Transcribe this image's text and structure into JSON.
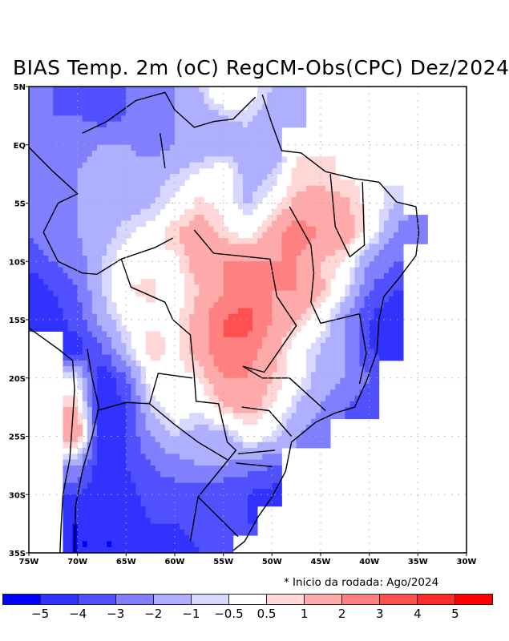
{
  "title": "BIAS Temp. 2m (oC) RegCM-Obs(CPC) Dez/2024",
  "note": "* Inicio da rodada: Ago/2024",
  "chart_data": {
    "type": "heatmap",
    "title": "BIAS Temp. 2m (oC) RegCM-Obs(CPC) Dez/2024",
    "subtitle": "* Inicio da rodada: Ago/2024",
    "xlabel": "",
    "ylabel": "",
    "xlim": [
      -75,
      -30
    ],
    "ylim": [
      -35,
      5
    ],
    "grid": true,
    "x_tick_labels": [
      "75W",
      "70W",
      "65W",
      "60W",
      "55W",
      "50W",
      "45W",
      "40W",
      "35W",
      "30W"
    ],
    "x_ticks": [
      -75,
      -70,
      -65,
      -60,
      -55,
      -50,
      -45,
      -40,
      -35,
      -30
    ],
    "y_tick_labels": [
      "5N",
      "EQ",
      "5S",
      "10S",
      "15S",
      "20S",
      "25S",
      "30S",
      "35S"
    ],
    "y_ticks": [
      5,
      0,
      -5,
      -10,
      -15,
      -20,
      -25,
      -30,
      -35
    ],
    "colorbar": {
      "levels": [
        -5,
        -4,
        -3,
        -2,
        -1,
        -0.5,
        0.5,
        1,
        2,
        3,
        4,
        5
      ],
      "level_labels": [
        "-5",
        "-4",
        "-3",
        "-2",
        "-1",
        "-0.5",
        "0.5",
        "1",
        "2",
        "3",
        "4",
        "5"
      ],
      "colors": [
        "#0000ff",
        "#3232ff",
        "#5050ff",
        "#8080ff",
        "#afafff",
        "#d7d7ff",
        "#ffffff",
        "#ffd7d7",
        "#ffaaaa",
        "#ff8080",
        "#ff5050",
        "#ff2a2a",
        "#ff0000"
      ]
    },
    "grid_lon": [
      -75,
      -72.5,
      -70,
      -67.5,
      -65,
      -62.5,
      -60,
      -57.5,
      -55,
      -52.5,
      -50,
      -47.5,
      -45,
      -42.5,
      -40,
      -37.5,
      -35,
      -32.5,
      -30
    ],
    "grid_lat": [
      5,
      2.5,
      0,
      -2.5,
      -5,
      -7.5,
      -10,
      -12.5,
      -15,
      -17.5,
      -20,
      -22.5,
      -25,
      -27.5,
      -30,
      -32.5,
      -35
    ],
    "values": [
      [
        -2.5,
        -3,
        -3.5,
        -4,
        -3,
        -3,
        -2,
        -1,
        0.7,
        0,
        -1,
        -1.5,
        null,
        null,
        null,
        null,
        null,
        null,
        null
      ],
      [
        -3,
        -3,
        -3,
        -3.5,
        -3,
        -2.5,
        -2,
        -1.5,
        -1,
        -0.7,
        -1.5,
        -2,
        null,
        null,
        null,
        null,
        null,
        null,
        null
      ],
      [
        -2.5,
        -3,
        -2.5,
        -2,
        -2,
        -2.5,
        -2,
        -2,
        -1.5,
        -1.5,
        -2,
        null,
        null,
        null,
        null,
        null,
        null,
        null,
        null
      ],
      [
        -3,
        -3,
        -2,
        -1.5,
        -1.5,
        -1.5,
        -1,
        -0.3,
        0.3,
        -1.5,
        -1,
        0.7,
        0.7,
        0.3,
        null,
        null,
        null,
        null,
        null
      ],
      [
        -3,
        -3,
        -2,
        -1.5,
        -1.5,
        -1.2,
        -0.3,
        0.7,
        0.2,
        -1.2,
        0,
        1.2,
        1.5,
        1.2,
        0.2,
        -1,
        null,
        null,
        null
      ],
      [
        -3,
        -2.5,
        -2,
        -1.5,
        -0.7,
        0,
        1,
        1.5,
        0.7,
        0,
        1.5,
        2.5,
        2,
        1.5,
        0.3,
        -2,
        -3,
        null,
        null
      ],
      [
        -3.5,
        -3,
        -2.5,
        -1,
        0,
        0.3,
        0.3,
        1.5,
        2,
        2,
        2,
        2,
        1,
        0.5,
        -2,
        -3,
        null,
        null,
        null
      ],
      [
        -5,
        -4,
        -3,
        -1,
        0.5,
        0.7,
        0,
        1,
        2,
        2.5,
        2,
        2,
        1.2,
        -0.5,
        -3,
        -4,
        null,
        null,
        null
      ],
      [
        -5,
        -4.5,
        -3.5,
        -1.5,
        -0.3,
        0.3,
        0.2,
        1.5,
        3,
        3.5,
        2,
        1,
        0,
        -2,
        -4,
        -5,
        null,
        null,
        null
      ],
      [
        null,
        null,
        -4.5,
        -3,
        -1,
        1,
        0.3,
        1.5,
        3,
        2.5,
        1.5,
        0,
        -1,
        -2,
        -4,
        -5,
        null,
        null,
        null
      ],
      [
        null,
        null,
        -0.5,
        -5,
        -3,
        0,
        0.2,
        0.5,
        2,
        2,
        1,
        0,
        -1.5,
        -2,
        -3,
        null,
        null,
        null,
        null
      ],
      [
        null,
        null,
        1,
        -5,
        -4,
        -1,
        0.2,
        -0.3,
        1,
        1.5,
        0.5,
        -1,
        -2,
        -3,
        -3.5,
        null,
        null,
        null,
        null
      ],
      [
        null,
        null,
        2,
        -5,
        -4,
        -2,
        -1,
        -1.5,
        -1.5,
        0,
        -0.5,
        -2,
        -2.5,
        null,
        null,
        null,
        null,
        null,
        null
      ],
      [
        null,
        null,
        -2,
        -5,
        -4,
        -3,
        -2.5,
        -2,
        -2,
        -2.5,
        -3,
        null,
        null,
        null,
        null,
        null,
        null,
        null,
        null
      ],
      [
        null,
        null,
        -4,
        -5,
        -4.5,
        -3.5,
        -3.5,
        -3.5,
        -4,
        -4,
        -4.5,
        null,
        null,
        null,
        null,
        null,
        null,
        null,
        null
      ],
      [
        null,
        null,
        -5,
        -5,
        -5,
        -4,
        -4,
        -3.5,
        -3.5,
        -4,
        null,
        null,
        null,
        null,
        null,
        null,
        null,
        null,
        null
      ],
      [
        null,
        null,
        -5,
        -5,
        -5,
        -5,
        -5,
        -4,
        -4,
        null,
        null,
        null,
        null,
        null,
        null,
        null,
        null,
        null,
        null
      ]
    ]
  }
}
